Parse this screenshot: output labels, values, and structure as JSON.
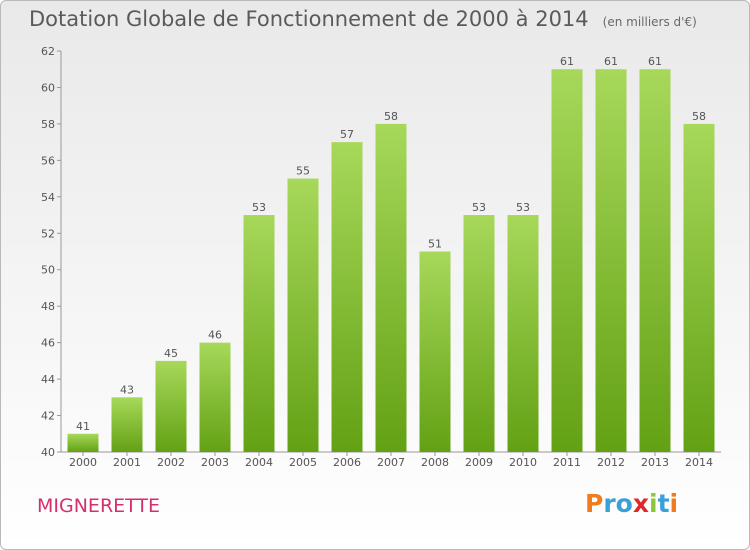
{
  "header": {
    "title": "Dotation Globale de Fonctionnement de 2000 à 2014",
    "subtitle": "(en milliers d'€)"
  },
  "footer": {
    "commune": "MIGNERETTE",
    "brand": "Proxiti"
  },
  "colors": {
    "bar_top": "#a7d85a",
    "bar_bottom": "#63a114",
    "commune": "#d62f6f",
    "logo_letters": [
      "#f07c1c",
      "#3aa0d8",
      "#3aa0d8",
      "#e0282b",
      "#8cc63f",
      "#3aa0d8",
      "#f07c1c"
    ]
  },
  "chart_data": {
    "type": "bar",
    "categories": [
      "2000",
      "2001",
      "2002",
      "2003",
      "2004",
      "2005",
      "2006",
      "2007",
      "2008",
      "2009",
      "2010",
      "2011",
      "2012",
      "2013",
      "2014"
    ],
    "values": [
      41,
      43,
      45,
      46,
      53,
      55,
      57,
      58,
      51,
      53,
      53,
      61,
      61,
      61,
      58
    ],
    "ylim": [
      40,
      62
    ],
    "yticks": [
      40,
      42,
      44,
      46,
      48,
      50,
      52,
      54,
      56,
      58,
      60,
      62
    ],
    "grid": false,
    "legend": "none"
  }
}
